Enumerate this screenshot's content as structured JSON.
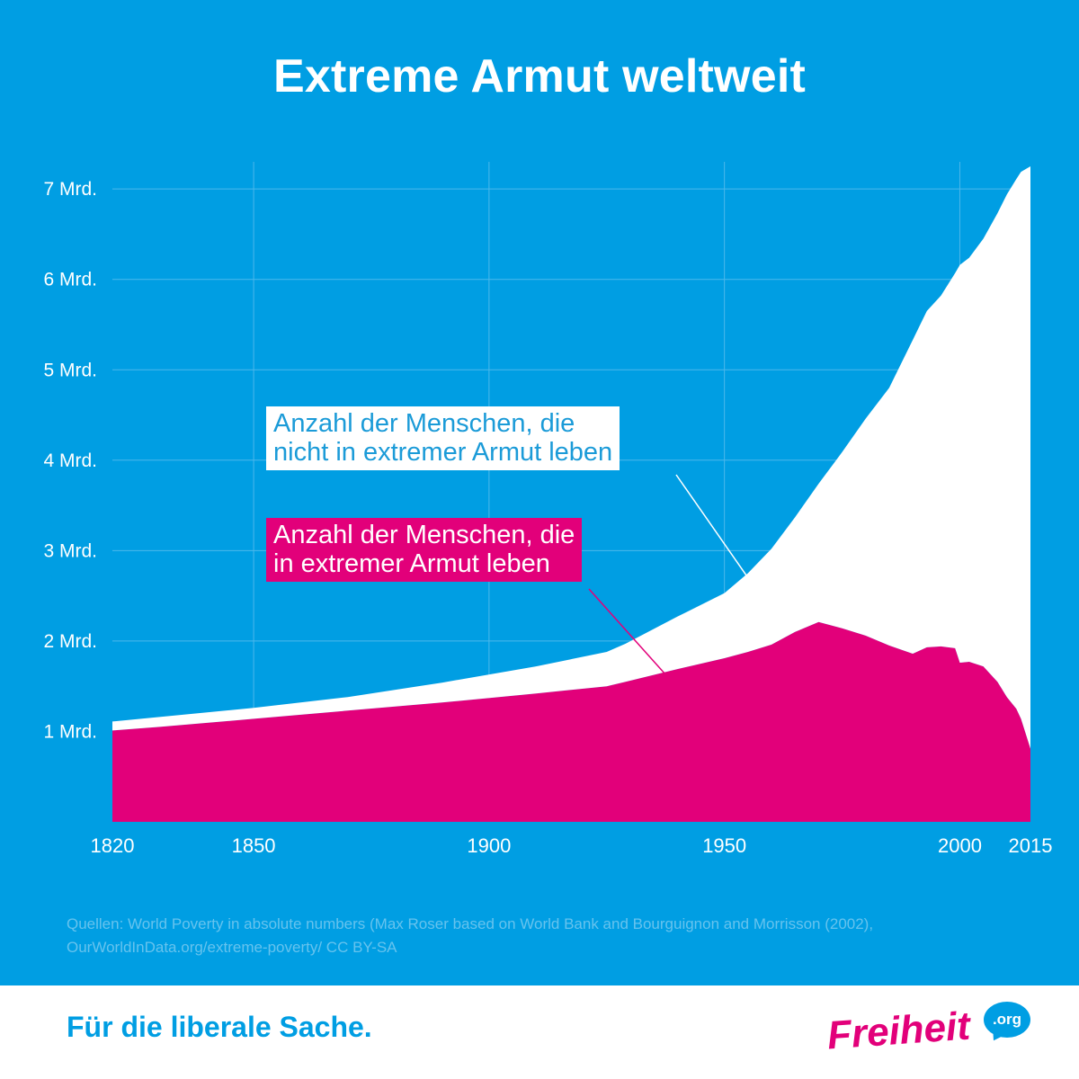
{
  "title": "Extreme Armut weltweit",
  "chart_data": {
    "type": "area",
    "title": "Extreme Armut weltweit",
    "stacked": true,
    "x": [
      1820,
      1830,
      1850,
      1870,
      1890,
      1910,
      1925,
      1929,
      1940,
      1950,
      1955,
      1960,
      1965,
      1970,
      1975,
      1980,
      1985,
      1990,
      1993,
      1996,
      1999,
      2000,
      2002,
      2005,
      2008,
      2010,
      2012,
      2013,
      2015
    ],
    "series": [
      {
        "name": "Anzahl der Menschen, die in extremer Armut leben",
        "color": "#e2007a",
        "values": [
          1.01,
          1.05,
          1.14,
          1.23,
          1.32,
          1.42,
          1.5,
          1.55,
          1.69,
          1.81,
          1.88,
          1.96,
          2.1,
          2.21,
          2.14,
          2.06,
          1.95,
          1.86,
          1.93,
          1.94,
          1.92,
          1.76,
          1.77,
          1.72,
          1.55,
          1.38,
          1.25,
          1.14,
          0.81
        ]
      },
      {
        "name": "Anzahl der Menschen, die nicht in extremer Armut leben",
        "color": "#ffffff",
        "values": [
          0.1,
          0.11,
          0.12,
          0.15,
          0.22,
          0.3,
          0.38,
          0.42,
          0.58,
          0.72,
          0.87,
          1.06,
          1.27,
          1.53,
          1.95,
          2.4,
          2.85,
          3.47,
          3.72,
          3.88,
          4.15,
          4.4,
          4.47,
          4.73,
          5.18,
          5.56,
          5.86,
          6.05,
          6.44
        ]
      }
    ],
    "xticks": [
      {
        "value": 1820,
        "label": "1820"
      },
      {
        "value": 1850,
        "label": "1850"
      },
      {
        "value": 1900,
        "label": "1900"
      },
      {
        "value": 1950,
        "label": "1950"
      },
      {
        "value": 2000,
        "label": "2000"
      },
      {
        "value": 2015,
        "label": "2015"
      }
    ],
    "yticks": [
      {
        "value": 1,
        "label": "1 Mrd."
      },
      {
        "value": 2,
        "label": "2 Mrd."
      },
      {
        "value": 3,
        "label": "3 Mrd."
      },
      {
        "value": 4,
        "label": "4 Mrd."
      },
      {
        "value": 5,
        "label": "5 Mrd."
      },
      {
        "value": 6,
        "label": "6 Mrd."
      },
      {
        "value": 7,
        "label": "7 Mrd."
      }
    ],
    "xgrid": [
      1850,
      1900,
      1950,
      2000
    ],
    "xlim": [
      1820,
      2015
    ],
    "ylim": [
      0,
      7.3
    ],
    "grid": true,
    "annotations": [
      {
        "series": 1,
        "lines": [
          "Anzahl der Menschen, die",
          "nicht in extremer Armut leben"
        ],
        "pointer_to": {
          "x": 1955,
          "y": 2.7
        }
      },
      {
        "series": 0,
        "lines": [
          "Anzahl der Menschen, die",
          "in extremer Armut leben"
        ],
        "pointer_to": {
          "x": 1938,
          "y": 1.6
        }
      }
    ]
  },
  "source": {
    "line1": "Quellen: World Poverty in absolute numbers (Max Roser based on World Bank and Bourguignon and Morrisson (2002),",
    "line2": "OurWorldInData.org/extreme-poverty/ CC BY-SA"
  },
  "footer": {
    "tagline": "Für die liberale Sache.",
    "logo_word": "Freiheit",
    "logo_suffix": ".org"
  },
  "colors": {
    "background": "#009ee3",
    "poor": "#e2007a",
    "not_poor": "#ffffff",
    "grid": "#4db8eb"
  }
}
